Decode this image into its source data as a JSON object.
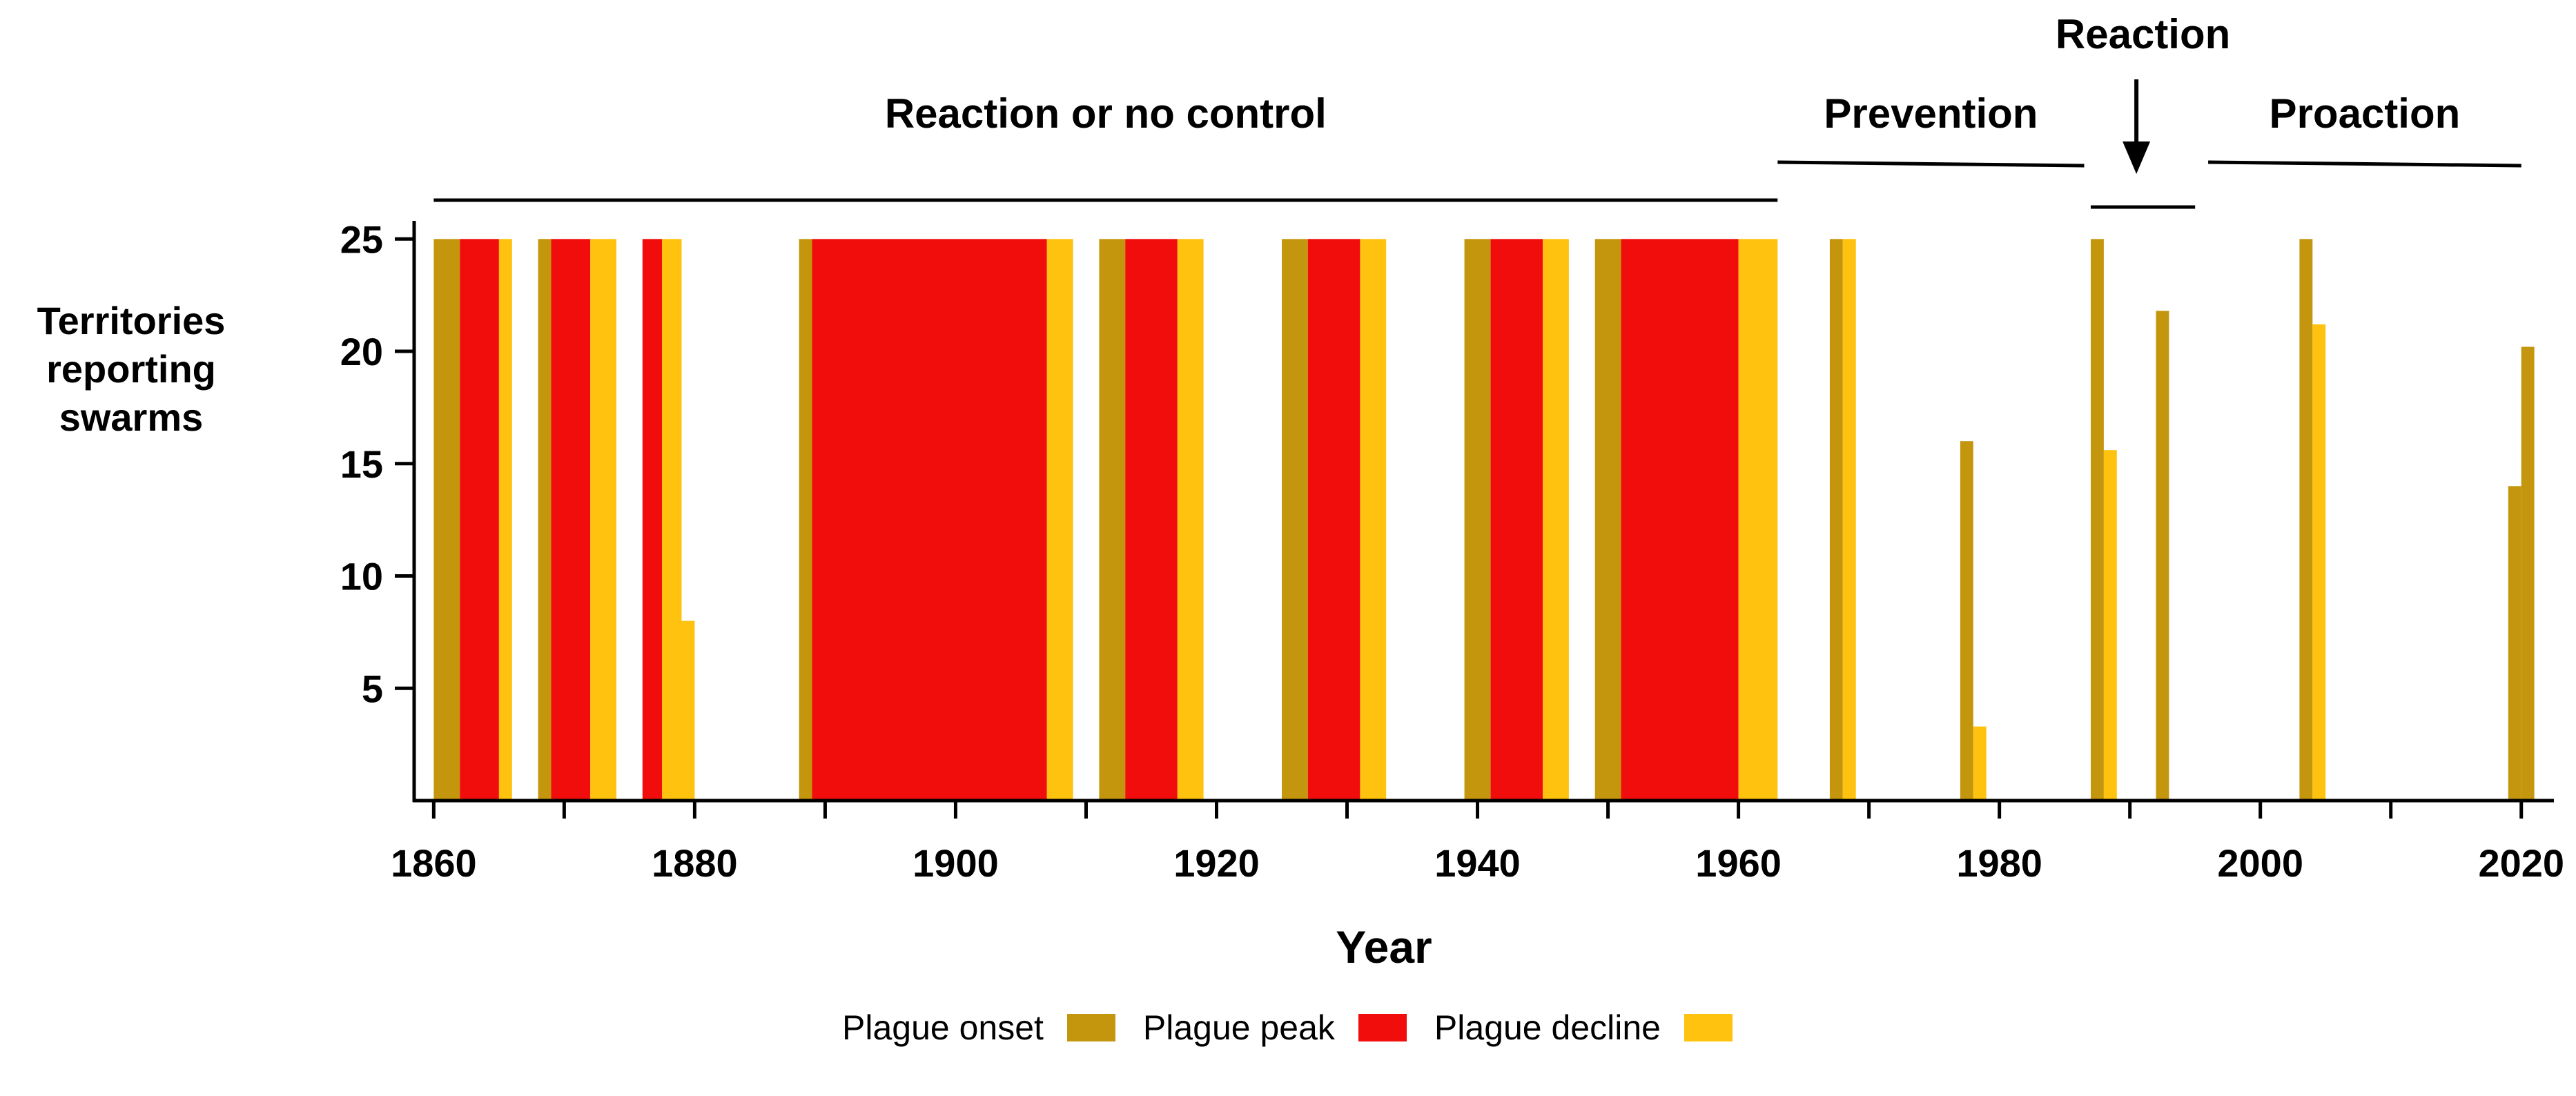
{
  "chart_data": {
    "type": "bar",
    "title": "",
    "xlabel": "Year",
    "ylabel": [
      "Territories",
      "reporting",
      "swarms"
    ],
    "xlim": [
      1858.5,
      2022.5
    ],
    "ylim": [
      0,
      25.5
    ],
    "x_ticks": [
      1860,
      1880,
      1900,
      1920,
      1940,
      1960,
      1980,
      2000,
      2020
    ],
    "y_ticks": [
      5,
      10,
      15,
      20,
      25
    ],
    "colors": {
      "onset": "#C4960E",
      "peak": "#F20D0D",
      "decline": "#FFC20E"
    },
    "legend": [
      {
        "key": "onset",
        "label": "Plague onset"
      },
      {
        "key": "peak",
        "label": "Plague peak"
      },
      {
        "key": "decline",
        "label": "Plague decline"
      }
    ],
    "bars": [
      {
        "start": 1860,
        "end": 1862,
        "value": 25,
        "phase": "onset"
      },
      {
        "start": 1862,
        "end": 1865,
        "value": 25,
        "phase": "peak"
      },
      {
        "start": 1865,
        "end": 1866,
        "value": 25,
        "phase": "decline"
      },
      {
        "start": 1868,
        "end": 1869,
        "value": 25,
        "phase": "onset"
      },
      {
        "start": 1869,
        "end": 1872,
        "value": 25,
        "phase": "peak"
      },
      {
        "start": 1872,
        "end": 1874,
        "value": 25,
        "phase": "decline"
      },
      {
        "start": 1876,
        "end": 1877.5,
        "value": 25,
        "phase": "peak"
      },
      {
        "start": 1877.5,
        "end": 1879,
        "value": 25,
        "phase": "decline"
      },
      {
        "start": 1879,
        "end": 1880,
        "value": 8,
        "phase": "decline"
      },
      {
        "start": 1888,
        "end": 1889,
        "value": 25,
        "phase": "onset"
      },
      {
        "start": 1889,
        "end": 1907,
        "value": 25,
        "phase": "peak"
      },
      {
        "start": 1907,
        "end": 1909,
        "value": 25,
        "phase": "decline"
      },
      {
        "start": 1911,
        "end": 1913,
        "value": 25,
        "phase": "onset"
      },
      {
        "start": 1913,
        "end": 1917,
        "value": 25,
        "phase": "peak"
      },
      {
        "start": 1917,
        "end": 1919,
        "value": 25,
        "phase": "decline"
      },
      {
        "start": 1925,
        "end": 1927,
        "value": 25,
        "phase": "onset"
      },
      {
        "start": 1927,
        "end": 1931,
        "value": 25,
        "phase": "peak"
      },
      {
        "start": 1931,
        "end": 1933,
        "value": 25,
        "phase": "decline"
      },
      {
        "start": 1939,
        "end": 1941,
        "value": 25,
        "phase": "onset"
      },
      {
        "start": 1941,
        "end": 1945,
        "value": 25,
        "phase": "peak"
      },
      {
        "start": 1945,
        "end": 1947,
        "value": 25,
        "phase": "decline"
      },
      {
        "start": 1949,
        "end": 1951,
        "value": 25,
        "phase": "onset"
      },
      {
        "start": 1951,
        "end": 1960,
        "value": 25,
        "phase": "peak"
      },
      {
        "start": 1960,
        "end": 1963,
        "value": 25,
        "phase": "decline"
      },
      {
        "start": 1967,
        "end": 1968,
        "value": 25,
        "phase": "onset"
      },
      {
        "start": 1968,
        "end": 1969,
        "value": 25,
        "phase": "decline"
      },
      {
        "start": 1977,
        "end": 1978,
        "value": 16,
        "phase": "onset"
      },
      {
        "start": 1978,
        "end": 1979,
        "value": 3.3,
        "phase": "decline"
      },
      {
        "start": 1987,
        "end": 1988,
        "value": 25,
        "phase": "onset"
      },
      {
        "start": 1988,
        "end": 1989,
        "value": 15.6,
        "phase": "decline"
      },
      {
        "start": 1992,
        "end": 1993,
        "value": 21.8,
        "phase": "onset"
      },
      {
        "start": 2003,
        "end": 2004,
        "value": 25,
        "phase": "onset"
      },
      {
        "start": 2004,
        "end": 2005,
        "value": 21.2,
        "phase": "decline"
      },
      {
        "start": 2019,
        "end": 2020,
        "value": 14,
        "phase": "onset"
      },
      {
        "start": 2020,
        "end": 2021,
        "value": 20.2,
        "phase": "onset"
      }
    ],
    "annotations": [
      {
        "label": "Reaction or no control",
        "start": 1860,
        "end": 1963,
        "lane": "upper"
      },
      {
        "label": "Prevention",
        "start": 1963,
        "end": 1986.5,
        "lane": "middle"
      },
      {
        "label": "Reaction",
        "start": 1987,
        "end": 1995,
        "lane": "arrow"
      },
      {
        "label": "Proaction",
        "start": 1996,
        "end": 2020,
        "lane": "middle"
      }
    ]
  }
}
